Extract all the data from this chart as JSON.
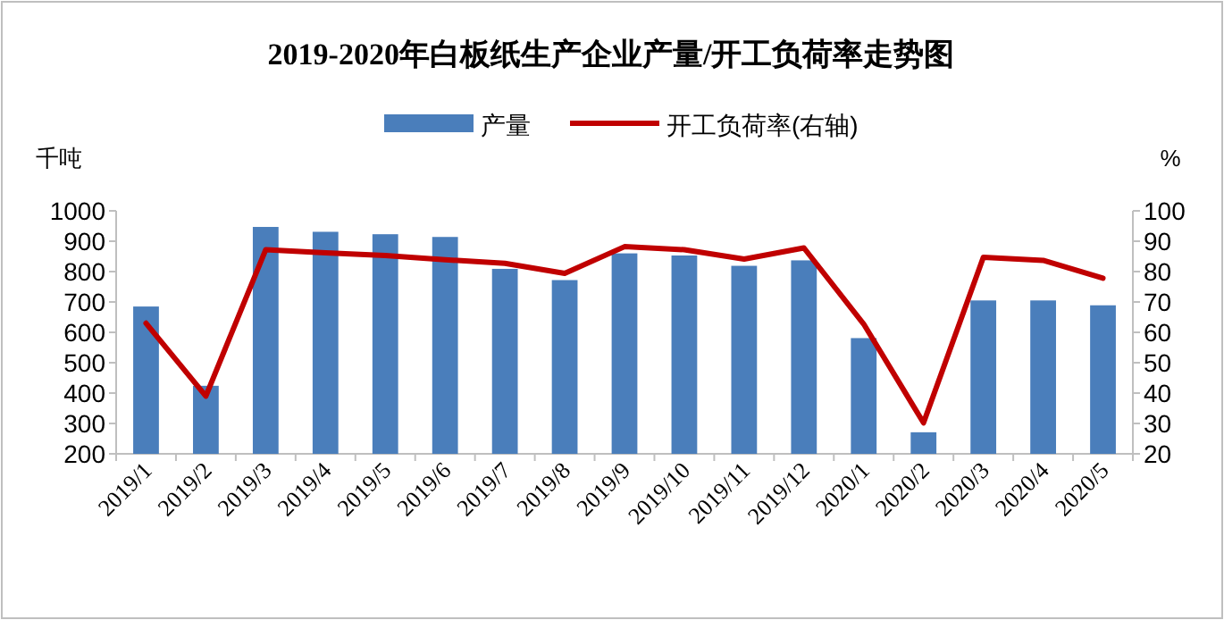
{
  "chart_data": {
    "type": "bar",
    "title": "2019-2020年白板纸生产企业产量/开工负荷率走势图",
    "ylabel": "千吨",
    "y2label": "%",
    "categories": [
      "2019/1",
      "2019/2",
      "2019/3",
      "2019/4",
      "2019/5",
      "2019/6",
      "2019/7",
      "2019/8",
      "2019/9",
      "2019/10",
      "2019/11",
      "2019/12",
      "2020/1",
      "2020/2",
      "2020/3",
      "2020/4",
      "2020/5"
    ],
    "series": [
      {
        "name": "产量",
        "color": "#4a7ebb",
        "values": [
          685,
          424,
          947,
          931,
          923,
          914,
          809,
          772,
          860,
          853,
          819,
          837,
          581,
          271,
          705,
          705,
          689
        ]
      },
      {
        "name": "开工负荷率(右轴)",
        "type": "line",
        "axis": "y2",
        "color": "#c00000",
        "values": [
          63,
          39,
          87.2,
          86.2,
          85.3,
          83.9,
          82.7,
          79.4,
          88.2,
          87.2,
          84.1,
          87.8,
          62.7,
          30.2,
          84.7,
          83.7,
          77.8
        ]
      }
    ],
    "ylim": [
      200,
      1000
    ],
    "yticks": [
      200,
      300,
      400,
      500,
      600,
      700,
      800,
      900,
      1000
    ],
    "y2lim": [
      20,
      100
    ],
    "y2ticks": [
      20,
      30,
      40,
      50,
      60,
      70,
      80,
      90,
      100
    ],
    "legend": "top",
    "grid": false
  }
}
